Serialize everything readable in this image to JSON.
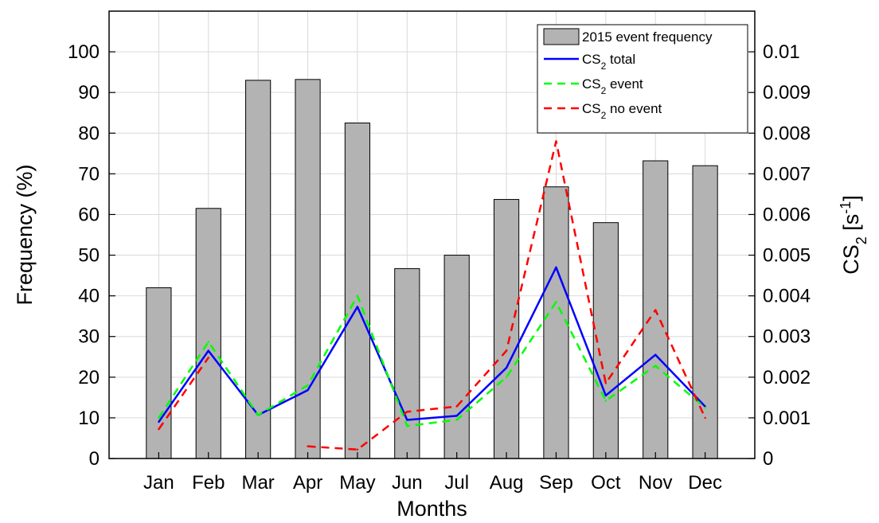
{
  "chart_data": {
    "type": "bar",
    "categories": [
      "Jan",
      "Feb",
      "Mar",
      "Apr",
      "May",
      "Jun",
      "Jul",
      "Aug",
      "Sep",
      "Oct",
      "Nov",
      "Dec"
    ],
    "xlabel": "Months",
    "ylabel": "Frequency (%)",
    "y2label_main": "CS",
    "y2label_sub": "2",
    "y2label_rest": " [s",
    "y2label_sup": "-1",
    "y2label_end": "]",
    "ylim": [
      0,
      110
    ],
    "y2lim": [
      0,
      0.011
    ],
    "yticks": [
      0,
      10,
      20,
      30,
      40,
      50,
      60,
      70,
      80,
      90,
      100
    ],
    "y2ticks": [
      0,
      0.001,
      0.002,
      0.003,
      0.004,
      0.005,
      0.006,
      0.007,
      0.008,
      0.009,
      0.01
    ],
    "ytick_labels": [
      "0",
      "10",
      "20",
      "30",
      "40",
      "50",
      "60",
      "70",
      "80",
      "90",
      "100"
    ],
    "y2tick_labels": [
      "0",
      "0.001",
      "0.002",
      "0.003",
      "0.004",
      "0.005",
      "0.006",
      "0.007",
      "0.008",
      "0.009",
      "0.01"
    ],
    "grid": true,
    "legend_position": "top-right",
    "bars": {
      "name": "2015 event frequency",
      "axis": "left",
      "color": "#b3b3b3",
      "values": [
        42,
        61.5,
        93,
        93.2,
        82.5,
        46.7,
        50,
        63.7,
        66.8,
        58,
        73.2,
        72
      ]
    },
    "series": [
      {
        "name": "total",
        "legend_prefix": "CS",
        "legend_sub": "2",
        "legend_suffix": " total",
        "axis": "right",
        "color": "#0000ff",
        "dash": "solid",
        "values": [
          0.0009,
          0.00265,
          0.00107,
          0.00168,
          0.00373,
          0.00095,
          0.00105,
          0.00223,
          0.0047,
          0.00155,
          0.00255,
          0.00128
        ]
      },
      {
        "name": "event",
        "legend_prefix": "CS",
        "legend_sub": "2",
        "legend_suffix": " event",
        "axis": "right",
        "color": "#00ff00",
        "dash": "dashed",
        "values": [
          0.001,
          0.00287,
          0.00107,
          0.0018,
          0.004,
          0.0008,
          0.00095,
          0.002,
          0.00385,
          0.00142,
          0.00228,
          0.00125
        ]
      },
      {
        "name": "no event",
        "legend_prefix": "CS",
        "legend_sub": "2",
        "legend_suffix": " no event",
        "axis": "right",
        "color": "#ff0000",
        "dash": "dashed",
        "values": [
          0.00072,
          0.00248,
          null,
          0.0003,
          0.00022,
          0.00115,
          0.00128,
          0.00265,
          0.0078,
          0.00185,
          0.00365,
          0.001
        ]
      }
    ]
  }
}
